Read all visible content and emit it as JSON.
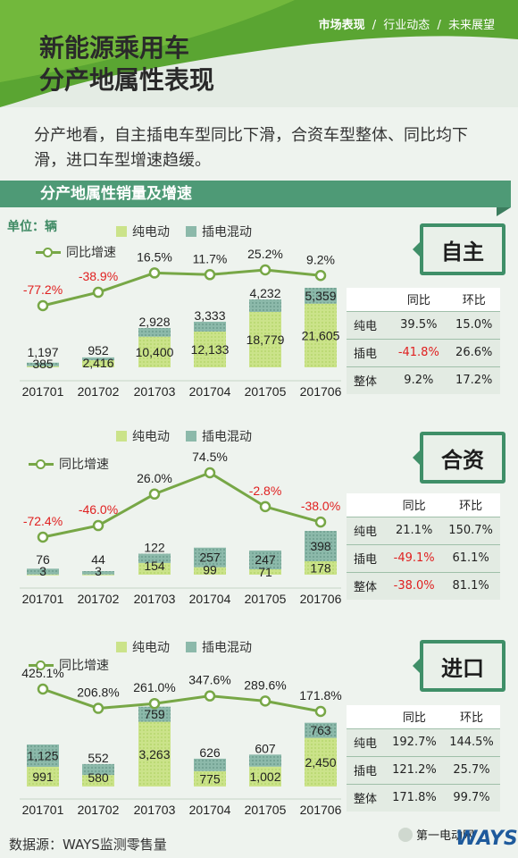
{
  "header": {
    "nav": [
      "市场表现",
      "行业动态",
      "未来展望"
    ],
    "nav_sep": "/",
    "title_line1": "新能源乘用车",
    "title_line2": "分产地属性表现"
  },
  "intro": "分产地看，自主插电车型同比下滑，合资车型整体、同比均下滑，进口车型增速趋缓。",
  "section_title": "分产地属性销量及增速",
  "unit": "单位：辆",
  "legend": {
    "ev": "纯电动",
    "phev": "插电混动",
    "yoy": "同比增速"
  },
  "colors": {
    "ev": "#cbe38a",
    "phev": "#8cb9aa",
    "line": "#77a746",
    "accent": "#3f8f68",
    "negative": "#e02020"
  },
  "table_header": {
    "yoy": "同比",
    "mom": "环比"
  },
  "chart_data": [
    {
      "type": "bar",
      "badge": "自主",
      "categories": [
        "201701",
        "201702",
        "201703",
        "201704",
        "201705",
        "201706"
      ],
      "series": [
        {
          "name": "纯电动",
          "values": [
            385,
            2416,
            10400,
            12133,
            18779,
            21605
          ]
        },
        {
          "name": "插电混动",
          "values": [
            1197,
            952,
            2928,
            3333,
            4232,
            5359
          ]
        }
      ],
      "line": {
        "name": "同比增速",
        "values": [
          -77.2,
          -38.9,
          16.5,
          11.7,
          25.2,
          9.2
        ],
        "labels": [
          "-77.2%",
          "-38.9%",
          "16.5%",
          "11.7%",
          "25.2%",
          "9.2%"
        ]
      },
      "table": [
        {
          "label": "纯电",
          "yoy": "39.5%",
          "mom": "15.0%"
        },
        {
          "label": "插电",
          "yoy": "-41.8%",
          "mom": "26.6%"
        },
        {
          "label": "整体",
          "yoy": "9.2%",
          "mom": "17.2%"
        }
      ]
    },
    {
      "type": "bar",
      "badge": "合资",
      "categories": [
        "201701",
        "201702",
        "201703",
        "201704",
        "201705",
        "201706"
      ],
      "series": [
        {
          "name": "纯电动",
          "values": [
            3,
            3,
            154,
            99,
            71,
            178
          ]
        },
        {
          "name": "插电混动",
          "values": [
            76,
            44,
            122,
            257,
            247,
            398
          ]
        }
      ],
      "line": {
        "name": "同比增速",
        "values": [
          -72.4,
          -46.0,
          26.0,
          74.5,
          -2.8,
          -38.0
        ],
        "labels": [
          "-72.4%",
          "-46.0%",
          "26.0%",
          "74.5%",
          "-2.8%",
          "-38.0%"
        ]
      },
      "table": [
        {
          "label": "纯电",
          "yoy": "21.1%",
          "mom": "150.7%"
        },
        {
          "label": "插电",
          "yoy": "-49.1%",
          "mom": "61.1%"
        },
        {
          "label": "整体",
          "yoy": "-38.0%",
          "mom": "81.1%"
        }
      ]
    },
    {
      "type": "bar",
      "badge": "进口",
      "categories": [
        "201701",
        "201702",
        "201703",
        "201704",
        "201705",
        "201706"
      ],
      "series": [
        {
          "name": "纯电动",
          "values": [
            991,
            580,
            3263,
            775,
            1002,
            2450
          ]
        },
        {
          "name": "插电混动",
          "values": [
            1125,
            552,
            759,
            626,
            607,
            763
          ]
        }
      ],
      "line": {
        "name": "同比增速",
        "values": [
          425.1,
          206.8,
          261.0,
          347.6,
          289.6,
          171.8
        ],
        "labels": [
          "425.1%",
          "206.8%",
          "261.0%",
          "347.6%",
          "289.6%",
          "171.8%"
        ]
      },
      "table": [
        {
          "label": "纯电",
          "yoy": "192.7%",
          "mom": "144.5%"
        },
        {
          "label": "插电",
          "yoy": "121.2%",
          "mom": "25.7%"
        },
        {
          "label": "整体",
          "yoy": "171.8%",
          "mom": "99.7%"
        }
      ]
    }
  ],
  "footer": {
    "source": "数据源：WAYS监测零售量",
    "wechat": "第一电动网",
    "logo": "WAYS"
  }
}
